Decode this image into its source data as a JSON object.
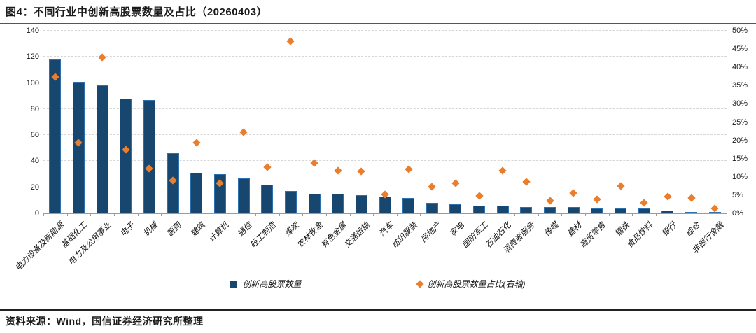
{
  "title": "图4：不同行业中创新高股票数量及占比（20260403）",
  "source": "资料来源：Wind，国信证券经济研究所整理",
  "colors": {
    "bar_fill": "#17466f",
    "bar_border": "#2e6fad",
    "marker": "#e87e2e",
    "grid": "#d6d6d6",
    "axis": "#9b9b9b",
    "text": "#1a1a1a"
  },
  "legend": [
    {
      "label": "创新高股票数量",
      "marker": "bar-square"
    },
    {
      "label": "创新高股票数量占比(右轴)",
      "marker": "diamond"
    }
  ],
  "chart_data": {
    "type": "bar",
    "title": "不同行业中创新高股票数量及占比（20260403）",
    "categories": [
      "电力设备及新能源",
      "基础化工",
      "电力及公用事业",
      "电子",
      "机械",
      "医药",
      "建筑",
      "计算机",
      "通信",
      "轻工制造",
      "煤炭",
      "农林牧渔",
      "有色金属",
      "交通运输",
      "汽车",
      "纺织服装",
      "房地产",
      "家电",
      "国防军工",
      "石油石化",
      "消费者服务",
      "传媒",
      "建材",
      "商贸零售",
      "钢铁",
      "食品饮料",
      "银行",
      "综合",
      "非银行金融"
    ],
    "series": [
      {
        "name": "创新高股票数量",
        "type": "bar",
        "axis": "left",
        "values": [
          118,
          101,
          98,
          88,
          87,
          46,
          31,
          30,
          27,
          22,
          17,
          15,
          15,
          14,
          13,
          12,
          8,
          7,
          6,
          6,
          5,
          5,
          5,
          4,
          4,
          4,
          2,
          1,
          1
        ]
      },
      {
        "name": "创新高股票数量占比(右轴)",
        "type": "scatter",
        "axis": "right",
        "values": [
          37.4,
          19.4,
          42.8,
          17.4,
          12.3,
          9.1,
          19.4,
          8.2,
          22.2,
          12.6,
          47.2,
          13.8,
          11.7,
          11.5,
          5.1,
          12.0,
          7.3,
          8.3,
          4.8,
          11.7,
          8.6,
          3.4,
          5.6,
          3.8,
          7.5,
          2.9,
          4.6,
          4.3,
          1.3
        ]
      }
    ],
    "left_axis": {
      "min": 0,
      "max": 140,
      "step": 20,
      "ticks": [
        "0",
        "20",
        "40",
        "60",
        "80",
        "100",
        "120",
        "140"
      ]
    },
    "right_axis": {
      "min": 0,
      "max": 50,
      "step": 5,
      "ticks": [
        "0%",
        "5%",
        "10%",
        "15%",
        "20%",
        "25%",
        "30%",
        "35%",
        "40%",
        "45%",
        "50%"
      ]
    },
    "grid": "horizontal-dashed",
    "legend_position": "bottom",
    "xlabel": "",
    "ylabel": ""
  }
}
